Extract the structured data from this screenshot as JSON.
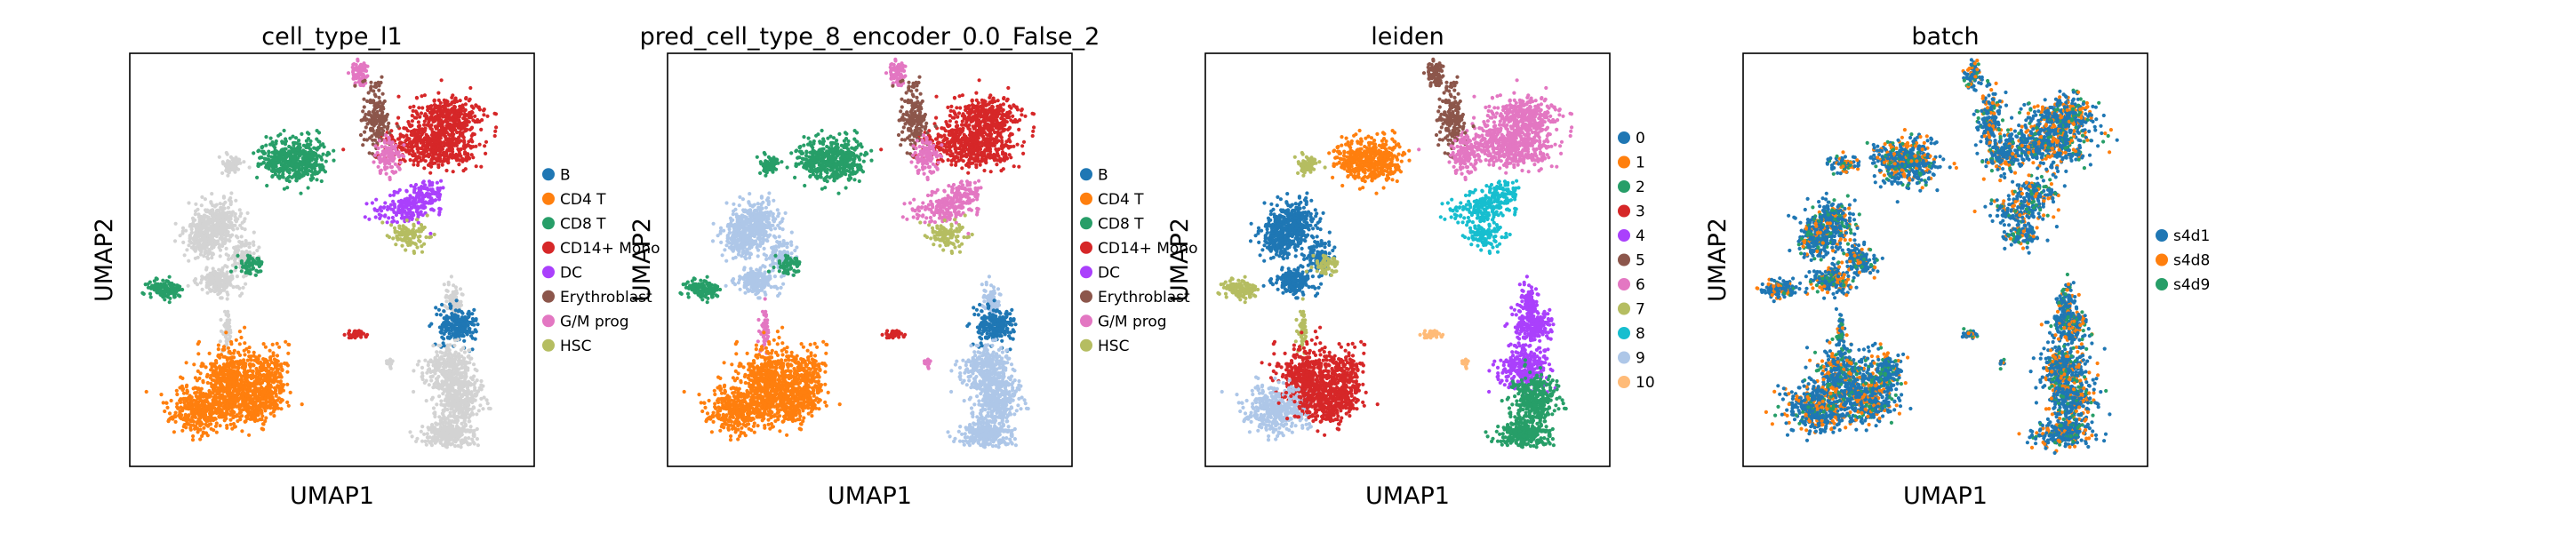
{
  "figure": {
    "palette": [
      "#1f77b4",
      "#ff7f0e",
      "#279e68",
      "#d62728",
      "#aa40fc",
      "#8c564b",
      "#e377c2",
      "#b5bd61",
      "#17becf",
      "#aec7e8",
      "#ffbb78"
    ],
    "unlabeled_color": "#d3d3d3"
  },
  "chart_data": [
    {
      "type": "scatter",
      "title": "cell_type_l1",
      "xlabel": "UMAP1",
      "ylabel": "UMAP2",
      "grid": false,
      "legend_position": "right",
      "legend": [
        {
          "label": "B",
          "color": "#1f77b4"
        },
        {
          "label": "CD4 T",
          "color": "#ff7f0e"
        },
        {
          "label": "CD8 T",
          "color": "#279e68"
        },
        {
          "label": "CD14+ Mono",
          "color": "#d62728"
        },
        {
          "label": "DC",
          "color": "#aa40fc"
        },
        {
          "label": "Erythroblast",
          "color": "#8c564b"
        },
        {
          "label": "G/M prog",
          "color": "#e377c2"
        },
        {
          "label": "HSC",
          "color": "#b5bd61"
        }
      ]
    },
    {
      "type": "scatter",
      "title": "pred_cell_type_8_encoder_0.0_False_2",
      "xlabel": "UMAP1",
      "ylabel": "UMAP2",
      "grid": false,
      "legend_position": "right",
      "legend": [
        {
          "label": "B",
          "color": "#1f77b4"
        },
        {
          "label": "CD4 T",
          "color": "#ff7f0e"
        },
        {
          "label": "CD8 T",
          "color": "#279e68"
        },
        {
          "label": "CD14+ Mono",
          "color": "#d62728"
        },
        {
          "label": "DC",
          "color": "#aa40fc"
        },
        {
          "label": "Erythroblast",
          "color": "#8c564b"
        },
        {
          "label": "G/M prog",
          "color": "#e377c2"
        },
        {
          "label": "HSC",
          "color": "#b5bd61"
        }
      ]
    },
    {
      "type": "scatter",
      "title": "leiden",
      "xlabel": "UMAP1",
      "ylabel": "UMAP2",
      "grid": false,
      "legend_position": "right",
      "legend": [
        {
          "label": "0",
          "color": "#1f77b4"
        },
        {
          "label": "1",
          "color": "#ff7f0e"
        },
        {
          "label": "2",
          "color": "#279e68"
        },
        {
          "label": "3",
          "color": "#d62728"
        },
        {
          "label": "4",
          "color": "#aa40fc"
        },
        {
          "label": "5",
          "color": "#8c564b"
        },
        {
          "label": "6",
          "color": "#e377c2"
        },
        {
          "label": "7",
          "color": "#b5bd61"
        },
        {
          "label": "8",
          "color": "#17becf"
        },
        {
          "label": "9",
          "color": "#aec7e8"
        },
        {
          "label": "10",
          "color": "#ffbb78"
        }
      ]
    },
    {
      "type": "scatter",
      "title": "batch",
      "xlabel": "UMAP1",
      "ylabel": "UMAP2",
      "grid": false,
      "legend_position": "right",
      "legend": [
        {
          "label": "s4d1",
          "color": "#1f77b4"
        },
        {
          "label": "s4d8",
          "color": "#ff7f0e"
        },
        {
          "label": "s4d9",
          "color": "#279e68"
        }
      ]
    }
  ]
}
